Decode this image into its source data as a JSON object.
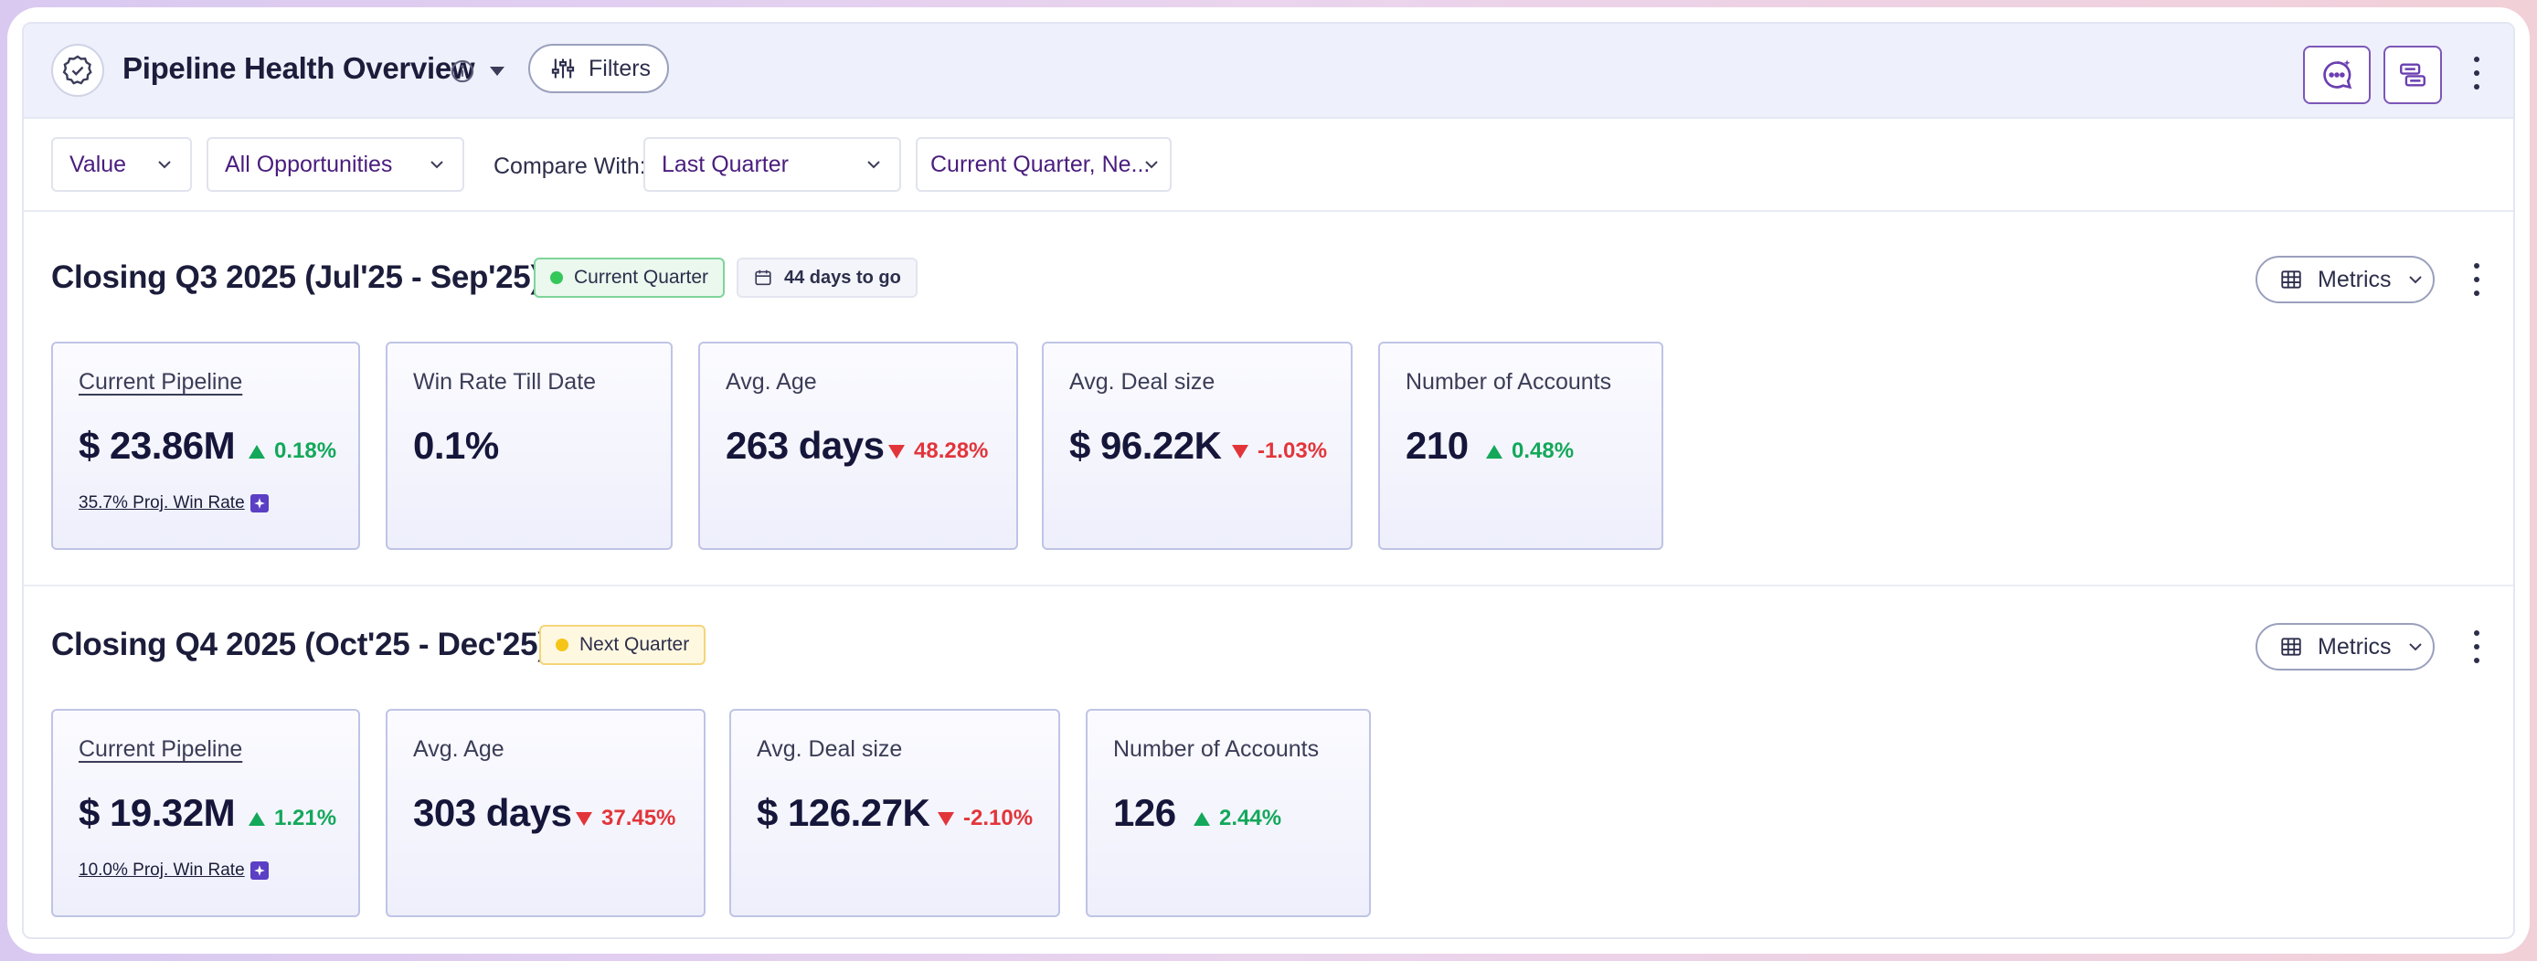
{
  "header": {
    "title": "Pipeline Health Overview",
    "filters_label": "Filters",
    "icons": {
      "logo": "badge-check-icon",
      "info": "info-icon",
      "caret": "caret-down-icon",
      "filters": "sliders-icon",
      "chat": "chat-sparkle-icon",
      "layout": "layout-icon",
      "more": "more-vertical-icon"
    }
  },
  "filter_bar": {
    "measure": "Value",
    "opportunities": "All Opportunities",
    "compare_label": "Compare With:",
    "compare_value": "Last Quarter",
    "period": "Current Quarter, Ne..."
  },
  "sections": [
    {
      "title": "Closing Q3 2025 (Jul'25 - Sep'25)",
      "badge": "Current Quarter",
      "badge_color": "#34c759",
      "days_to_go": "44 days to go",
      "metrics_label": "Metrics",
      "cards": [
        {
          "label": "Current Pipeline",
          "value": "$ 23.86M",
          "delta": "0.18%",
          "direction": "up",
          "proj": "35.7% Proj. Win Rate"
        },
        {
          "label": "Win Rate Till Date",
          "value": "0.1%"
        },
        {
          "label": "Avg. Age",
          "value": "263 days",
          "delta": "48.28%",
          "direction": "down"
        },
        {
          "label": "Avg. Deal size",
          "value": "$ 96.22K",
          "delta": "-1.03%",
          "direction": "down"
        },
        {
          "label": "Number of Accounts",
          "value": "210",
          "delta": "0.48%",
          "direction": "up"
        }
      ]
    },
    {
      "title": "Closing Q4 2025 (Oct'25 - Dec'25)",
      "badge": "Next Quarter",
      "badge_color": "#f5c518",
      "metrics_label": "Metrics",
      "cards": [
        {
          "label": "Current Pipeline",
          "value": "$ 19.32M",
          "delta": "1.21%",
          "direction": "up",
          "proj": "10.0% Proj. Win Rate"
        },
        {
          "label": "Avg. Age",
          "value": "303 days",
          "delta": "37.45%",
          "direction": "down"
        },
        {
          "label": "Avg. Deal size",
          "value": "$ 126.27K",
          "delta": "-2.10%",
          "direction": "down"
        },
        {
          "label": "Number of Accounts",
          "value": "126",
          "delta": "2.44%",
          "direction": "up"
        }
      ]
    }
  ],
  "colors": {
    "accent": "#4a1d7e",
    "up": "#13a85a",
    "down": "#e2353a",
    "header_bg": "#eef0fb"
  }
}
